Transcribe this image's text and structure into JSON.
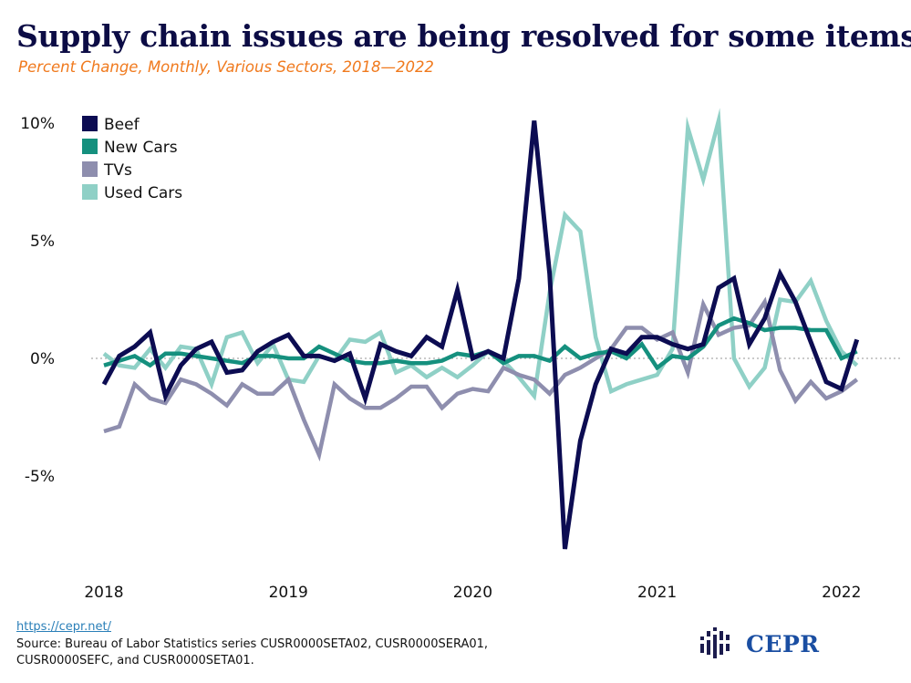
{
  "title": "Supply chain issues are being resolved for some items.",
  "subtitle": "Percent Change, Monthly, Various Sectors, 2018—2022",
  "footer": {
    "link": "https://cepr.net/",
    "source": "Source: Bureau of Labor Statistics series CUSR0000SETA02, CUSR0000SERA01, CUSR0000SEFC, and CUSR0000SETA01."
  },
  "logo": {
    "text": "CEPR",
    "color": "#1a4ea2"
  },
  "chart_data": {
    "type": "line",
    "x": [
      "2018-01",
      "2018-02",
      "2018-03",
      "2018-04",
      "2018-05",
      "2018-06",
      "2018-07",
      "2018-08",
      "2018-09",
      "2018-10",
      "2018-11",
      "2018-12",
      "2019-01",
      "2019-02",
      "2019-03",
      "2019-04",
      "2019-05",
      "2019-06",
      "2019-07",
      "2019-08",
      "2019-09",
      "2019-10",
      "2019-11",
      "2019-12",
      "2020-01",
      "2020-02",
      "2020-03",
      "2020-04",
      "2020-05",
      "2020-06",
      "2020-07",
      "2020-08",
      "2020-09",
      "2020-10",
      "2020-11",
      "2020-12",
      "2021-01",
      "2021-02",
      "2021-03",
      "2021-04",
      "2021-05",
      "2021-06",
      "2021-07",
      "2021-08",
      "2021-09",
      "2021-10",
      "2021-11",
      "2021-12",
      "2022-01",
      "2022-02"
    ],
    "x_tick_labels": [
      "2018",
      "2019",
      "2020",
      "2021",
      "2022"
    ],
    "y_ticks": [
      10,
      5,
      0,
      -5
    ],
    "y_tick_labels": [
      "10%",
      "5%",
      "0%",
      "-5%"
    ],
    "ylim": [
      -9,
      10.5
    ],
    "zero_line": "dotted",
    "grid": false,
    "legend_position": "top-left",
    "series": [
      {
        "name": "Beef",
        "color": "#0c0c52",
        "values": [
          -1.1,
          0.1,
          0.5,
          1.1,
          -1.6,
          -0.3,
          0.4,
          0.7,
          -0.6,
          -0.5,
          0.3,
          0.7,
          1.0,
          0.1,
          0.1,
          -0.1,
          0.2,
          -1.7,
          0.6,
          0.3,
          0.1,
          0.9,
          0.5,
          2.9,
          0.0,
          0.3,
          0.0,
          3.4,
          10.1,
          3.6,
          -8.1,
          -3.5,
          -1.1,
          0.4,
          0.2,
          0.9,
          0.9,
          0.6,
          0.4,
          0.6,
          3.0,
          3.4,
          0.6,
          1.7,
          3.6,
          2.4,
          0.7,
          -1.0,
          -1.3,
          0.8
        ]
      },
      {
        "name": "New Cars",
        "color": "#15907e",
        "values": [
          -0.3,
          -0.1,
          0.1,
          -0.3,
          0.2,
          0.2,
          0.1,
          0.0,
          -0.1,
          -0.2,
          0.1,
          0.1,
          0.0,
          0.0,
          0.5,
          0.2,
          -0.1,
          -0.2,
          -0.2,
          -0.1,
          -0.2,
          -0.2,
          -0.1,
          0.2,
          0.1,
          0.3,
          -0.2,
          0.1,
          0.1,
          -0.1,
          0.5,
          0.0,
          0.2,
          0.3,
          0.0,
          0.6,
          -0.4,
          0.1,
          0.0,
          0.5,
          1.4,
          1.7,
          1.5,
          1.2,
          1.3,
          1.3,
          1.2,
          1.2,
          0.0,
          0.3
        ]
      },
      {
        "name": "TVs",
        "color": "#8e8eae",
        "values": [
          -3.1,
          -2.9,
          -1.1,
          -1.7,
          -1.9,
          -0.9,
          -1.1,
          -1.5,
          -2.0,
          -1.1,
          -1.5,
          -1.5,
          -0.9,
          -2.6,
          -4.1,
          -1.1,
          -1.7,
          -2.1,
          -2.1,
          -1.7,
          -1.2,
          -1.2,
          -2.1,
          -1.5,
          -1.3,
          -1.4,
          -0.4,
          -0.7,
          -0.9,
          -1.5,
          -0.7,
          -0.4,
          0.0,
          0.4,
          1.3,
          1.3,
          0.8,
          1.1,
          -0.6,
          2.3,
          1.0,
          1.3,
          1.4,
          2.4,
          -0.5,
          -1.8,
          -1.0,
          -1.7,
          -1.4,
          -0.9
        ]
      },
      {
        "name": "Used Cars",
        "color": "#8fd0c6",
        "values": [
          0.2,
          -0.3,
          -0.4,
          0.4,
          -0.4,
          0.5,
          0.4,
          -1.1,
          0.9,
          1.1,
          -0.2,
          0.6,
          -0.9,
          -1.0,
          0.1,
          -0.1,
          0.8,
          0.7,
          1.1,
          -0.6,
          -0.3,
          -0.8,
          -0.4,
          -0.8,
          -0.3,
          0.3,
          -0.1,
          -0.8,
          -1.6,
          2.8,
          6.1,
          5.4,
          0.9,
          -1.4,
          -1.1,
          -0.9,
          -0.7,
          0.4,
          9.8,
          7.6,
          10.1,
          0.0,
          -1.2,
          -0.4,
          2.5,
          2.4,
          3.3,
          1.6,
          0.3,
          -0.3
        ]
      }
    ]
  }
}
